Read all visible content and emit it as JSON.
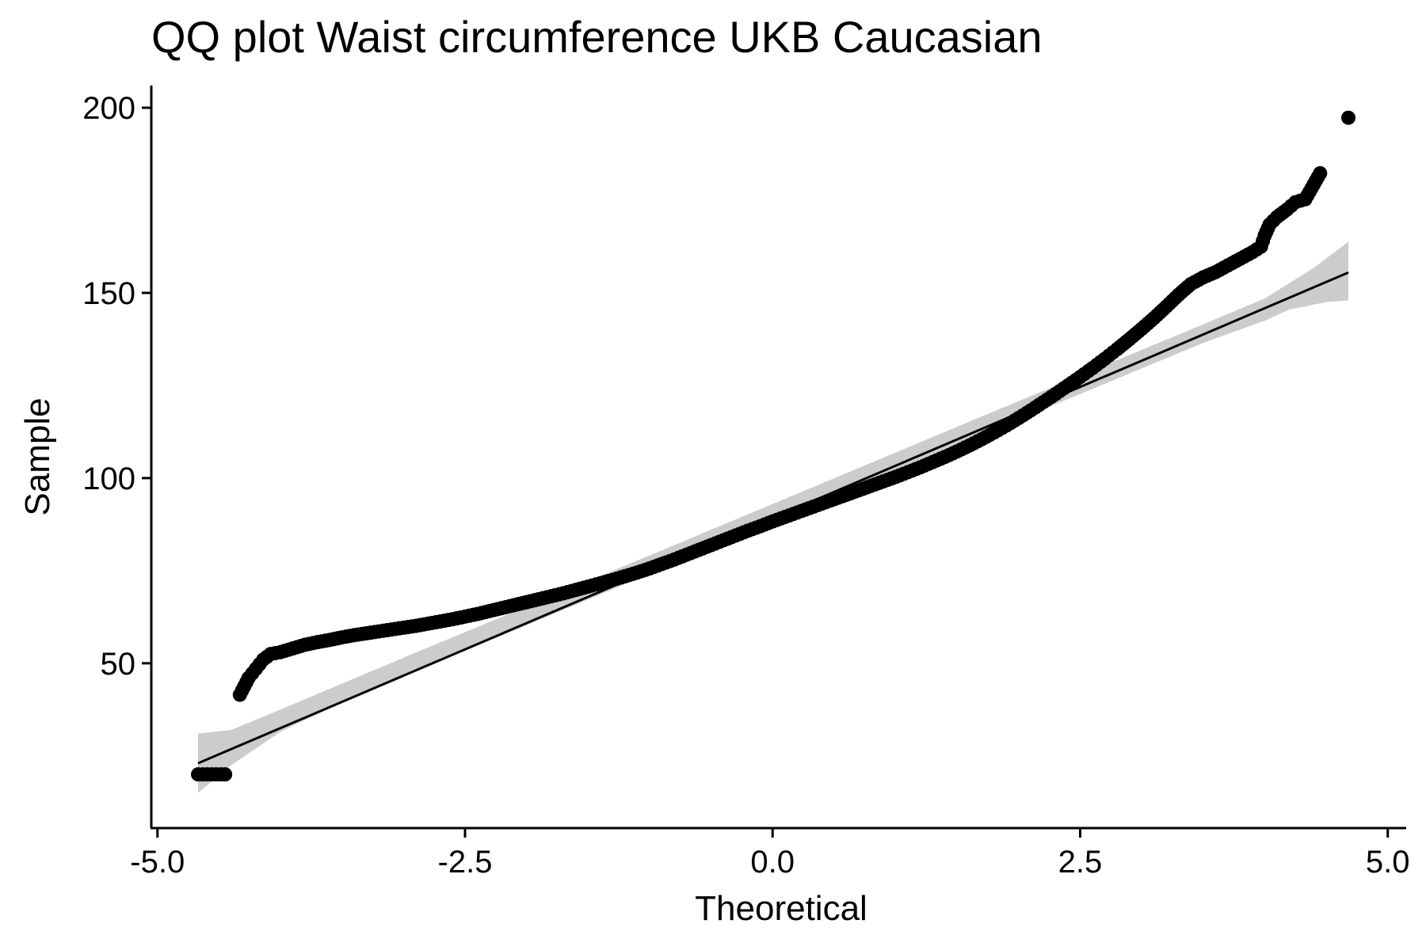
{
  "chart_data": {
    "type": "scatter",
    "title": "QQ plot Waist circumference UKB Caucasian",
    "xlabel": "Theoretical",
    "ylabel": "Sample",
    "xlim": [
      -5.05,
      5.15
    ],
    "ylim": [
      5.5,
      206
    ],
    "xticks": [
      -5.0,
      -2.5,
      0.0,
      2.5,
      5.0
    ],
    "xtick_labels": [
      "-5.0",
      "-2.5",
      "0.0",
      "2.5",
      "5.0"
    ],
    "yticks": [
      50,
      100,
      150,
      200
    ],
    "ytick_labels": [
      "50",
      "100",
      "150",
      "200"
    ],
    "grid": false,
    "legend": "none",
    "point_color": "#000000",
    "series": [
      {
        "kind": "points",
        "points": [
          [
            -4.67,
            20
          ],
          [
            -4.45,
            20
          ],
          [
            -4.33,
            41.5
          ],
          [
            -4.26,
            46
          ],
          [
            -4.2,
            48.5
          ],
          [
            -4.14,
            51
          ],
          [
            -4.08,
            52.5
          ],
          [
            -4.0,
            53
          ],
          [
            -3.9,
            54
          ],
          [
            -3.8,
            55
          ],
          [
            -3.7,
            55.7
          ],
          [
            -3.6,
            56.3
          ],
          [
            -3.5,
            57
          ],
          [
            -3.4,
            57.6
          ],
          [
            -3.3,
            58.1
          ],
          [
            -3.2,
            58.6
          ],
          [
            -3.1,
            59.1
          ],
          [
            -3.0,
            59.6
          ],
          [
            -2.9,
            60.1
          ],
          [
            -2.8,
            60.7
          ],
          [
            -2.7,
            61.3
          ],
          [
            -2.6,
            61.9
          ],
          [
            -2.5,
            62.6
          ],
          [
            -2.4,
            63.3
          ],
          [
            -2.3,
            64.1
          ],
          [
            -2.2,
            64.9
          ],
          [
            -2.1,
            65.7
          ],
          [
            -2.0,
            66.5
          ],
          [
            -1.9,
            67.3
          ],
          [
            -1.8,
            68.1
          ],
          [
            -1.7,
            68.9
          ],
          [
            -1.6,
            69.8
          ],
          [
            -1.5,
            70.7
          ],
          [
            -1.4,
            71.6
          ],
          [
            -1.3,
            72.5
          ],
          [
            -1.2,
            73.5
          ],
          [
            -1.1,
            74.5
          ],
          [
            -1.0,
            75.6
          ],
          [
            -0.9,
            76.8
          ],
          [
            -0.8,
            78.0
          ],
          [
            -0.7,
            79.3
          ],
          [
            -0.6,
            80.6
          ],
          [
            -0.5,
            81.9
          ],
          [
            -0.4,
            83.2
          ],
          [
            -0.3,
            84.5
          ],
          [
            -0.2,
            85.8
          ],
          [
            -0.1,
            87.0
          ],
          [
            0.0,
            88.3
          ],
          [
            0.1,
            89.5
          ],
          [
            0.2,
            90.7
          ],
          [
            0.3,
            91.9
          ],
          [
            0.4,
            93.1
          ],
          [
            0.5,
            94.3
          ],
          [
            0.6,
            95.5
          ],
          [
            0.7,
            96.7
          ],
          [
            0.8,
            97.9
          ],
          [
            0.9,
            99.1
          ],
          [
            1.0,
            100.3
          ],
          [
            1.1,
            101.6
          ],
          [
            1.2,
            102.9
          ],
          [
            1.3,
            104.3
          ],
          [
            1.4,
            105.7
          ],
          [
            1.5,
            107.2
          ],
          [
            1.6,
            108.8
          ],
          [
            1.7,
            110.5
          ],
          [
            1.8,
            112.3
          ],
          [
            1.9,
            114.2
          ],
          [
            2.0,
            116.2
          ],
          [
            2.1,
            118.3
          ],
          [
            2.2,
            120.5
          ],
          [
            2.3,
            122.7
          ],
          [
            2.4,
            125.0
          ],
          [
            2.5,
            127.3
          ],
          [
            2.6,
            129.7
          ],
          [
            2.7,
            132.2
          ],
          [
            2.8,
            134.8
          ],
          [
            2.9,
            137.5
          ],
          [
            3.0,
            140.3
          ],
          [
            3.1,
            143.2
          ],
          [
            3.2,
            146.3
          ],
          [
            3.3,
            149.5
          ],
          [
            3.4,
            152.4
          ],
          [
            3.5,
            154.2
          ],
          [
            3.6,
            155.6
          ],
          [
            3.7,
            157.4
          ],
          [
            3.8,
            159.2
          ],
          [
            3.9,
            161.0
          ],
          [
            3.97,
            162.5
          ],
          [
            4.0,
            165.5
          ],
          [
            4.04,
            168.5
          ],
          [
            4.1,
            170.5
          ],
          [
            4.18,
            172.5
          ],
          [
            4.25,
            174.5
          ],
          [
            4.33,
            175.3
          ],
          [
            4.45,
            182.3
          ],
          [
            4.68,
            197.3
          ]
        ]
      },
      {
        "kind": "reference-line",
        "points": [
          [
            -4.67,
            23
          ],
          [
            4.68,
            155.5
          ]
        ]
      },
      {
        "kind": "confidence-band",
        "fill": "#cccccc",
        "upper": [
          [
            -4.67,
            31
          ],
          [
            -4.4,
            32
          ],
          [
            -4.0,
            37.5
          ],
          [
            -3.5,
            44.5
          ],
          [
            -3.0,
            51.5
          ],
          [
            -2.5,
            58.4
          ],
          [
            -2.0,
            65.3
          ],
          [
            -1.5,
            72.2
          ],
          [
            -1.0,
            79.1
          ],
          [
            0.0,
            93.0
          ],
          [
            1.0,
            106.9
          ],
          [
            2.0,
            120.8
          ],
          [
            2.5,
            127.7
          ],
          [
            3.0,
            134.6
          ],
          [
            3.5,
            141.5
          ],
          [
            4.0,
            148.5
          ],
          [
            4.4,
            156.8
          ],
          [
            4.68,
            163.8
          ]
        ],
        "lower": [
          [
            4.68,
            148.0
          ],
          [
            4.5,
            147.5
          ],
          [
            4.2,
            145.5
          ],
          [
            4.0,
            142.5
          ],
          [
            3.5,
            136.5
          ],
          [
            3.0,
            129.6
          ],
          [
            2.5,
            122.7
          ],
          [
            2.0,
            115.8
          ],
          [
            1.0,
            101.9
          ],
          [
            0.0,
            88.0
          ],
          [
            -1.0,
            74.1
          ],
          [
            -1.5,
            67.2
          ],
          [
            -2.0,
            60.3
          ],
          [
            -2.5,
            53.4
          ],
          [
            -3.0,
            46.5
          ],
          [
            -3.5,
            39.5
          ],
          [
            -4.0,
            31.5
          ],
          [
            -4.4,
            22.5
          ],
          [
            -4.67,
            15
          ]
        ]
      }
    ]
  }
}
